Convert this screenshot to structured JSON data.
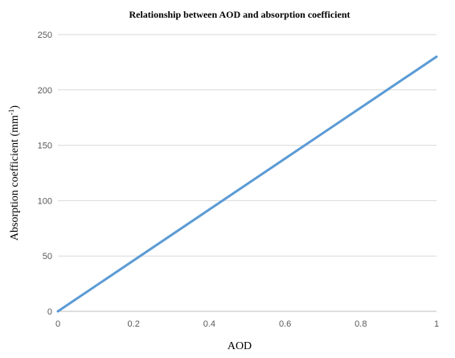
{
  "chart_data": {
    "type": "line",
    "title": "Relationship between AOD and absorption coefficient",
    "xlabel": "AOD",
    "ylabel_main": "Absorption coefficient (mm",
    "ylabel_sup": "-1",
    "ylabel_close": ")",
    "xlim": [
      0,
      1
    ],
    "ylim": [
      0,
      250
    ],
    "x_ticks": [
      "0",
      "0.2",
      "0.4",
      "0.6",
      "0.8",
      "1"
    ],
    "y_ticks": [
      "0",
      "50",
      "100",
      "150",
      "200",
      "250"
    ],
    "grid": true,
    "legend": "none",
    "series": [
      {
        "color": "#5b9bd5",
        "x": [
          0,
          1
        ],
        "y": [
          0,
          230
        ]
      }
    ]
  }
}
